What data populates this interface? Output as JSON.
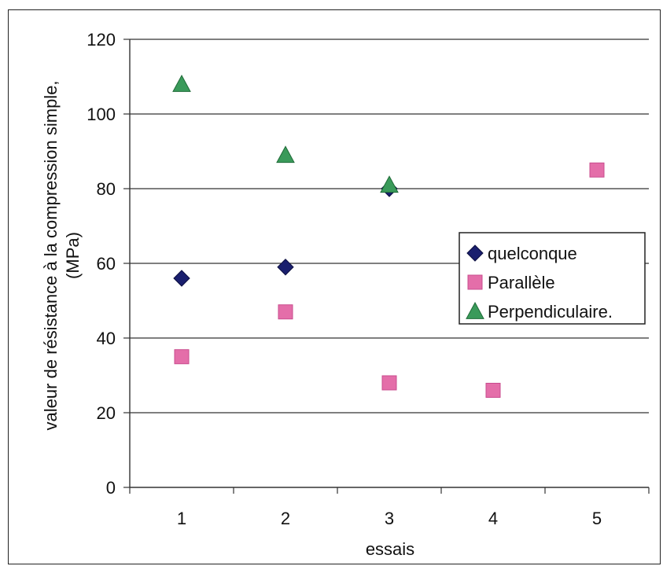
{
  "chart_data": {
    "type": "scatter",
    "xlabel": "essais",
    "ylabel_lines": [
      "valeur de résistance à la compression simple,",
      "(MPa)"
    ],
    "x_ticks": [
      1,
      2,
      3,
      4,
      5
    ],
    "xlim": [
      0.5,
      5.5
    ],
    "ylim": [
      0,
      120
    ],
    "y_ticks": [
      0,
      20,
      40,
      60,
      80,
      100,
      120
    ],
    "grid": "horizontal",
    "legend_position": "right",
    "series": [
      {
        "name": "quelconque",
        "marker": "diamond",
        "color": "#1a1f6e",
        "points": [
          [
            1,
            56
          ],
          [
            2,
            59
          ],
          [
            3,
            80
          ]
        ]
      },
      {
        "name": "Parallèle",
        "marker": "square",
        "color": "#e46ea9",
        "points": [
          [
            1,
            35
          ],
          [
            2,
            47
          ],
          [
            3,
            28
          ],
          [
            4,
            26
          ],
          [
            5,
            85
          ]
        ]
      },
      {
        "name": "Perpendiculaire.",
        "marker": "triangle",
        "color": "#3a9a5a",
        "points": [
          [
            1,
            108
          ],
          [
            2,
            89
          ],
          [
            3,
            81
          ]
        ]
      }
    ]
  }
}
